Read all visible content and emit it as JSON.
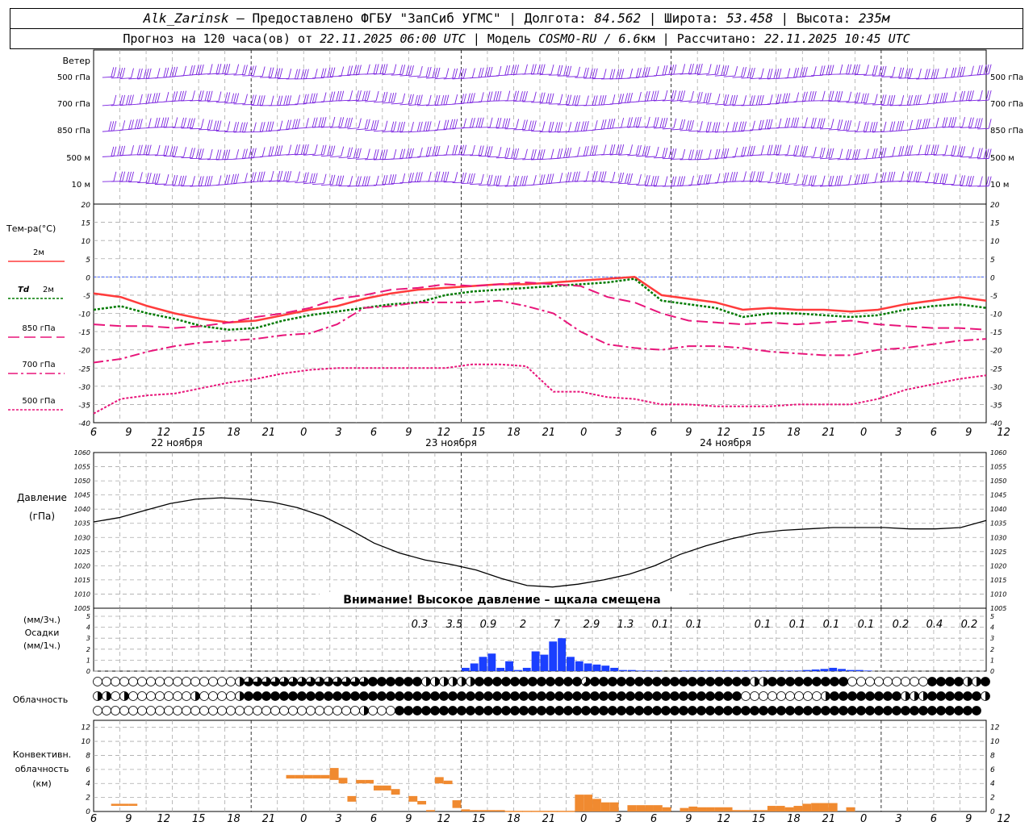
{
  "header": {
    "station": "Alk_Zarinsk",
    "provider": "– Предоставлено ФГБУ \"ЗапСиб УГМС\"",
    "lon_label": "Долгота:",
    "lon": "84.562",
    "lat_label": "Широта:",
    "lat": "53.458",
    "alt_label": "Высота:",
    "alt": "235м",
    "forecast_label": "Прогноз на 120 часа(ов) от",
    "forecast_time": "22.11.2025 06:00 UTC",
    "model_label": "Модель",
    "model": "COSMO-RU / 6.6",
    "model_unit": "км",
    "calc_label": "Рассчитано:",
    "calc_time": "22.11.2025 10:45 UTC",
    "sep": "|"
  },
  "labels": {
    "wind": "Ветер",
    "wind_levels": [
      "500 гПа",
      "700 гПа",
      "850 гПа",
      "500 м",
      "10 м"
    ],
    "temp": "Тем-ра(°C)",
    "t2m": "2м",
    "td": "Td",
    "td2m": "2м",
    "t850": "850 гПа",
    "t700": "700 гПа",
    "t500": "500 гПа",
    "pressure": [
      "Давление",
      "(гПа)"
    ],
    "pressure_warning": "Внимание! Высокое давление – щкала смещена",
    "precip": [
      "(мм/3ч.)",
      "Осадки",
      "(мм/1ч.)"
    ],
    "cloud": "Облачность",
    "conv": [
      "Конвективн.",
      "облачность",
      "(км)"
    ],
    "days": [
      "22 ноября",
      "23 ноября",
      "24 ноября"
    ]
  },
  "colors": {
    "t2m": "#ff3b3b",
    "td": "#007a00",
    "level": "#e8157a",
    "wind": "#7a22e0",
    "precip": "#1a3fff",
    "conv": "#f08a30",
    "zero_line": "#3355ff",
    "grid": "#aaaaaa"
  },
  "chart_data": [
    {
      "type": "line",
      "panel": "temperature",
      "x_start": "2025-11-22 06:00 UTC",
      "x_step_hours": 3,
      "x_ticks": [
        "6",
        "9",
        "12",
        "15",
        "18",
        "21",
        "0",
        "3",
        "6",
        "9",
        "12",
        "15",
        "18",
        "21",
        "0",
        "3",
        "6",
        "9",
        "12",
        "15",
        "18",
        "21",
        "0",
        "3",
        "6",
        "9",
        "12"
      ],
      "ylim": [
        -40,
        20
      ],
      "yticks": [
        20,
        15,
        10,
        5,
        0,
        -5,
        -10,
        -15,
        -20,
        -25,
        -30,
        -35,
        -40
      ],
      "series": [
        {
          "name": "2м",
          "key": "t2m",
          "values": [
            -4.5,
            -5.5,
            -8,
            -10,
            -11.5,
            -12.5,
            -12,
            -10.5,
            -9,
            -8,
            -6,
            -4.5,
            -3.5,
            -3,
            -2.5,
            -2,
            -2,
            -1.5,
            -1,
            -0.5,
            0,
            -5,
            -6,
            -7,
            -9,
            -8.5,
            -9,
            -9,
            -9.5,
            -9,
            -7.5,
            -6.5,
            -5.5,
            -6.5
          ]
        },
        {
          "name": "Td 2м",
          "key": "td",
          "values": [
            -9,
            -8,
            -10,
            -11.5,
            -13.5,
            -14.5,
            -14,
            -12,
            -10.5,
            -9.5,
            -8.5,
            -7.5,
            -7,
            -5,
            -4,
            -3.5,
            -3,
            -2.5,
            -2,
            -1.5,
            -0.5,
            -6.5,
            -7.5,
            -8.5,
            -11,
            -10,
            -10,
            -10.5,
            -11,
            -10.5,
            -9,
            -8,
            -7.5,
            -8.5
          ]
        },
        {
          "name": "850 гПа",
          "key": "t850",
          "values": [
            -13,
            -13.5,
            -13.5,
            -14,
            -13.5,
            -12.5,
            -11,
            -10,
            -8.5,
            -6,
            -5,
            -3.5,
            -3,
            -2,
            -2.5,
            -2,
            -1.5,
            -2,
            -2.5,
            -5.5,
            -7,
            -10,
            -12,
            -12.5,
            -13,
            -12.5,
            -13,
            -12.5,
            -12,
            -13,
            -13.5,
            -14,
            -14,
            -14.5
          ]
        },
        {
          "name": "700 гПа",
          "key": "t700",
          "values": [
            -23.5,
            -22.5,
            -20.5,
            -19,
            -18,
            -17.5,
            -17,
            -16,
            -15.5,
            -13,
            -8.5,
            -8,
            -7,
            -7,
            -7,
            -6.5,
            -8,
            -10,
            -15,
            -18.5,
            -19.5,
            -20,
            -19,
            -19,
            -19.5,
            -20.5,
            -21,
            -21.5,
            -21.5,
            -20,
            -19.5,
            -18.5,
            -17.5,
            -17
          ]
        },
        {
          "name": "500 гПа",
          "key": "t500",
          "values": [
            -37.5,
            -33.5,
            -32.5,
            -32,
            -30.5,
            -29,
            -28,
            -26.5,
            -25.5,
            -25,
            -25,
            -25,
            -25,
            -25,
            -24,
            -24,
            -24.5,
            -31.5,
            -31.5,
            -33,
            -33.5,
            -35,
            -35,
            -35.5,
            -35.5,
            -35.5,
            -35,
            -35,
            -35,
            -33.5,
            -31,
            -29.5,
            -28,
            -27
          ]
        }
      ]
    },
    {
      "type": "line",
      "panel": "pressure",
      "ylim": [
        1005,
        1060
      ],
      "yticks": [
        1060,
        1055,
        1050,
        1045,
        1040,
        1035,
        1030,
        1025,
        1020,
        1015,
        1010,
        1005
      ],
      "series": [
        {
          "name": "Давление",
          "values": [
            1035.5,
            1037,
            1039.5,
            1042,
            1043.5,
            1044,
            1043.5,
            1042.5,
            1040.5,
            1037.5,
            1033,
            1028,
            1024.5,
            1022,
            1020.5,
            1018.5,
            1015.5,
            1013,
            1012.5,
            1013.5,
            1015,
            1017,
            1020,
            1024,
            1027,
            1029.5,
            1031.5,
            1032.5,
            1033,
            1033.5,
            1033.5,
            1033.5,
            1033,
            1033,
            1033.5,
            1036
          ]
        }
      ]
    },
    {
      "type": "bar",
      "panel": "precipitation",
      "ylim": [
        0,
        5
      ],
      "yticks": [
        5,
        4,
        3,
        2,
        1,
        0
      ],
      "labels_3h": [
        "0.3",
        "3.5",
        "0.9",
        "2",
        "7",
        "2.9",
        "1.3",
        "0.1",
        "0.1",
        "0.1",
        "0.1",
        "0.1",
        "0.1",
        "0.2",
        "0.4",
        "0.2"
      ],
      "hourly_mm": [
        0,
        0,
        0,
        0,
        0,
        0,
        0,
        0,
        0,
        0,
        0,
        0,
        0,
        0,
        0,
        0,
        0,
        0,
        0,
        0,
        0,
        0,
        0,
        0,
        0,
        0,
        0,
        0,
        0,
        0,
        0,
        0,
        0,
        0,
        0,
        0,
        0,
        0,
        0,
        0,
        0,
        0,
        0.3,
        0.7,
        1.3,
        1.6,
        0.3,
        0.9,
        0.1,
        0.3,
        1.8,
        1.5,
        2.7,
        3.0,
        1.3,
        0.9,
        0.7,
        0.6,
        0.5,
        0.3,
        0.1,
        0.1,
        0.05,
        0.05,
        0.05,
        0,
        0,
        0.05,
        0.05,
        0.05,
        0.05,
        0.05,
        0.05,
        0.05,
        0.05,
        0.05,
        0.05,
        0.05,
        0.05,
        0.05,
        0.05,
        0.1,
        0.15,
        0.2,
        0.3,
        0.2,
        0.1,
        0.1,
        0.05
      ]
    },
    {
      "type": "bar",
      "panel": "convective_cloud",
      "ylim": [
        0,
        13
      ],
      "yticks": [
        12,
        10,
        8,
        6,
        4,
        2,
        0
      ],
      "x_ticks": [
        "6",
        "9",
        "12",
        "15",
        "18",
        "21",
        "0",
        "3",
        "6",
        "9",
        "12",
        "15",
        "18",
        "21",
        "0",
        "3",
        "6",
        "9",
        "12",
        "15",
        "18",
        "21",
        "0",
        "3",
        "6",
        "9",
        "12"
      ],
      "cells": [
        {
          "h": 2,
          "base": 0.8,
          "top": 1.1
        },
        {
          "h": 3,
          "base": 0.8,
          "top": 1.1
        },
        {
          "h": 4,
          "base": 0.8,
          "top": 1.1
        },
        {
          "h": 22,
          "base": 4.7,
          "top": 5.2
        },
        {
          "h": 23,
          "base": 4.7,
          "top": 5.2
        },
        {
          "h": 24,
          "base": 4.7,
          "top": 5.2
        },
        {
          "h": 25,
          "base": 4.7,
          "top": 5.2
        },
        {
          "h": 26,
          "base": 4.7,
          "top": 5.2
        },
        {
          "h": 27,
          "base": 4.5,
          "top": 6.2
        },
        {
          "h": 28,
          "base": 4.0,
          "top": 4.8
        },
        {
          "h": 29,
          "base": 1.4,
          "top": 2.2
        },
        {
          "h": 30,
          "base": 4.0,
          "top": 4.5
        },
        {
          "h": 31,
          "base": 4.0,
          "top": 4.5
        },
        {
          "h": 32,
          "base": 3.0,
          "top": 3.7
        },
        {
          "h": 33,
          "base": 3.0,
          "top": 3.7
        },
        {
          "h": 34,
          "base": 2.4,
          "top": 3.2
        },
        {
          "h": 36,
          "base": 1.4,
          "top": 2.2
        },
        {
          "h": 37,
          "base": 1.0,
          "top": 1.5
        },
        {
          "h": 38,
          "base": 0,
          "top": 0.2
        },
        {
          "h": 39,
          "base": 4.0,
          "top": 4.9
        },
        {
          "h": 40,
          "base": 3.9,
          "top": 4.4
        },
        {
          "h": 41,
          "base": 0.5,
          "top": 1.6
        },
        {
          "h": 42,
          "base": 0,
          "top": 0.3
        },
        {
          "h": 43,
          "base": 0,
          "top": 0.2
        },
        {
          "h": 44,
          "base": 0,
          "top": 0.2
        },
        {
          "h": 45,
          "base": 0,
          "top": 0.2
        },
        {
          "h": 46,
          "base": 0,
          "top": 0.2
        },
        {
          "h": 47,
          "base": 0,
          "top": 0.1
        },
        {
          "h": 48,
          "base": 0,
          "top": 0.1
        },
        {
          "h": 49,
          "base": 0,
          "top": 0.1
        },
        {
          "h": 50,
          "base": 0,
          "top": 0.1
        },
        {
          "h": 51,
          "base": 0,
          "top": 0.1
        },
        {
          "h": 52,
          "base": 0,
          "top": 0.1
        },
        {
          "h": 53,
          "base": 0,
          "top": 0.1
        },
        {
          "h": 54,
          "base": 0,
          "top": 0.1
        },
        {
          "h": 55,
          "base": 0,
          "top": 2.4
        },
        {
          "h": 56,
          "base": 0,
          "top": 2.4
        },
        {
          "h": 57,
          "base": 0,
          "top": 1.8
        },
        {
          "h": 58,
          "base": 0,
          "top": 1.3
        },
        {
          "h": 59,
          "base": 0,
          "top": 1.3
        },
        {
          "h": 61,
          "base": 0,
          "top": 0.9
        },
        {
          "h": 62,
          "base": 0,
          "top": 0.9
        },
        {
          "h": 63,
          "base": 0,
          "top": 0.9
        },
        {
          "h": 64,
          "base": 0,
          "top": 0.9
        },
        {
          "h": 65,
          "base": 0,
          "top": 0.6
        },
        {
          "h": 67,
          "base": 0,
          "top": 0.5
        },
        {
          "h": 68,
          "base": 0,
          "top": 0.7
        },
        {
          "h": 69,
          "base": 0,
          "top": 0.6
        },
        {
          "h": 70,
          "base": 0,
          "top": 0.6
        },
        {
          "h": 71,
          "base": 0,
          "top": 0.6
        },
        {
          "h": 72,
          "base": 0,
          "top": 0.6
        },
        {
          "h": 73,
          "base": 0,
          "top": 0.2
        },
        {
          "h": 74,
          "base": 0,
          "top": 0.2
        },
        {
          "h": 75,
          "base": 0,
          "top": 0.2
        },
        {
          "h": 76,
          "base": 0,
          "top": 0.2
        },
        {
          "h": 77,
          "base": 0,
          "top": 0.8
        },
        {
          "h": 78,
          "base": 0,
          "top": 0.8
        },
        {
          "h": 79,
          "base": 0,
          "top": 0.6
        },
        {
          "h": 80,
          "base": 0,
          "top": 0.8
        },
        {
          "h": 81,
          "base": 0,
          "top": 1.1
        },
        {
          "h": 82,
          "base": 0,
          "top": 1.2
        },
        {
          "h": 83,
          "base": 0,
          "top": 1.2
        },
        {
          "h": 84,
          "base": 0,
          "top": 1.2
        },
        {
          "h": 86,
          "base": 0,
          "top": 0.6
        }
      ]
    },
    {
      "type": "table",
      "panel": "cloudiness",
      "note": "oktas 0-8 per hour; rows = layers",
      "rows": [
        [
          0,
          0,
          0,
          0,
          0,
          0,
          0,
          0,
          0,
          0,
          0,
          0,
          0,
          0,
          0,
          0,
          4,
          6,
          6,
          6,
          6,
          6,
          6,
          6,
          6,
          6,
          6,
          6,
          6,
          6,
          6,
          8,
          8,
          8,
          8,
          8,
          8,
          4,
          4,
          4,
          4,
          4,
          4,
          8,
          8,
          8,
          8,
          8,
          8,
          8,
          8,
          8,
          8,
          8,
          8,
          5,
          8,
          8,
          8,
          8,
          8,
          8,
          8,
          8,
          8,
          8,
          8,
          8,
          8,
          8,
          8,
          8,
          8,
          8,
          4,
          4,
          8,
          8,
          8,
          8,
          8,
          8,
          8,
          8,
          8,
          0,
          0,
          0,
          0,
          0,
          0,
          0,
          0,
          0,
          8,
          8,
          8,
          8,
          4,
          4,
          8,
          8
        ],
        [
          4,
          4,
          0,
          4,
          0,
          0,
          0,
          0,
          0,
          0,
          0,
          4,
          0,
          0,
          0,
          0,
          4,
          8,
          8,
          8,
          8,
          8,
          8,
          8,
          8,
          8,
          8,
          8,
          8,
          8,
          8,
          8,
          8,
          8,
          8,
          8,
          8,
          8,
          8,
          8,
          8,
          8,
          8,
          8,
          8,
          8,
          8,
          8,
          8,
          8,
          8,
          8,
          8,
          8,
          8,
          8,
          8,
          8,
          8,
          8,
          8,
          8,
          8,
          8,
          8,
          8,
          8,
          8,
          8,
          8,
          8,
          8,
          8,
          0,
          0,
          0,
          0,
          0,
          0,
          0,
          0,
          0,
          4,
          8,
          8,
          8,
          8,
          8,
          8,
          8,
          8,
          4,
          4,
          4,
          8,
          8,
          8,
          8,
          8,
          8,
          4,
          4
        ],
        [
          0,
          0,
          0,
          0,
          0,
          0,
          0,
          0,
          0,
          0,
          0,
          0,
          0,
          0,
          0,
          0,
          0,
          0,
          0,
          0,
          0,
          0,
          0,
          0,
          0,
          0,
          0,
          0,
          0,
          0,
          4,
          0,
          0,
          0,
          8,
          8,
          8,
          8,
          8,
          8,
          8,
          8,
          8,
          8,
          8,
          8,
          8,
          8,
          8,
          8,
          8,
          8,
          8,
          8,
          8,
          8,
          8,
          8,
          8,
          8,
          8,
          8,
          8,
          8,
          8,
          8,
          8,
          8,
          8,
          8,
          8,
          8,
          8,
          8,
          8,
          8,
          8,
          8,
          8,
          8,
          8,
          8,
          8,
          8,
          8,
          8,
          8,
          8,
          8,
          8,
          8,
          8,
          8,
          8,
          8,
          8,
          8,
          8,
          8,
          8
        ]
      ]
    }
  ]
}
